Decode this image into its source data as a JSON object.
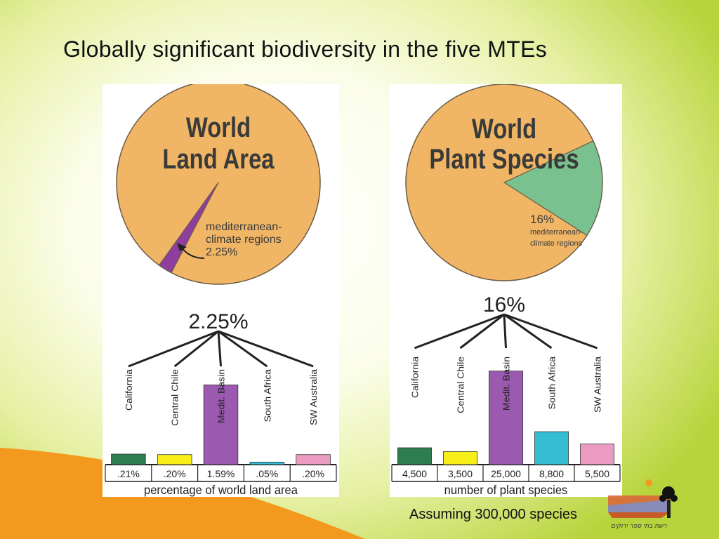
{
  "slide": {
    "title": "Globally significant biodiversity in the five MTEs",
    "caption": "Assuming 300,000 species",
    "logo_text": "רשת בתי ספר ירוקים",
    "colors": {
      "pie_main": "#f0b565",
      "pie_edge": "#6b5a45",
      "land_slice": "#8e3f9e",
      "plant_slice": "#79c28f",
      "california": "#2e7d4f",
      "central_chile": "#f7ee1a",
      "medit_basin": "#9b59b0",
      "south_africa": "#33bcd2",
      "sw_australia": "#ec9cc3"
    }
  },
  "chart_data": [
    {
      "type": "pie",
      "title_lines": [
        "World",
        "Land Area"
      ],
      "slices": [
        {
          "label": "mediterranean-climate regions",
          "value": 2.25
        },
        {
          "label": "",
          "value": 97.75
        }
      ],
      "slice_label_lines": [
        "mediterranean-",
        "climate regions",
        "2.25%"
      ]
    },
    {
      "type": "bar",
      "total_label": "2.25%",
      "categories": [
        "California",
        "Central Chile",
        "Medit. Basin",
        "South Africa",
        "SW Australia"
      ],
      "values": [
        0.21,
        0.2,
        1.59,
        0.05,
        0.2
      ],
      "value_labels": [
        ".21%",
        ".20%",
        "1.59%",
        ".05%",
        ".20%"
      ],
      "xlabel": "percentage of world land area",
      "ylim": [
        0,
        2.1
      ]
    },
    {
      "type": "pie",
      "title_lines": [
        "World",
        "Plant Species"
      ],
      "slices": [
        {
          "label": "mediterranean-climate regions",
          "value": 16
        },
        {
          "label": "",
          "value": 84
        }
      ],
      "slice_label_lines": [
        "16%",
        "mediterranean-",
        "climate regions"
      ]
    },
    {
      "type": "bar",
      "total_label": "16%",
      "categories": [
        "California",
        "Central Chile",
        "Medit. Basin",
        "South Africa",
        "SW Australia"
      ],
      "values": [
        4500,
        3500,
        25000,
        8800,
        5500
      ],
      "value_labels": [
        "4,500",
        "3,500",
        "25,000",
        "8,800",
        "5,500"
      ],
      "xlabel": "number of plant species",
      "ylim": [
        0,
        30000
      ]
    }
  ]
}
